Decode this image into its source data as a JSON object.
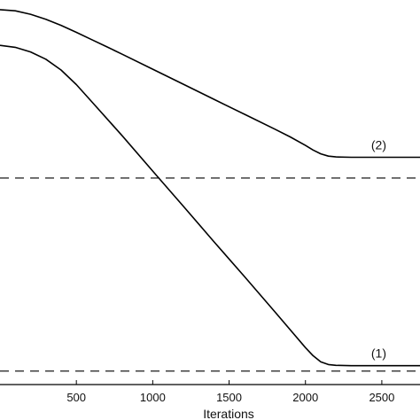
{
  "chart_data": {
    "type": "line",
    "xlabel": "Iterations",
    "ylabel": "",
    "xlim": [
      0,
      2750
    ],
    "ylim": [
      0,
      1
    ],
    "xticks": [
      500,
      1000,
      1500,
      2000,
      2500
    ],
    "grid": false,
    "series": [
      {
        "name": "(2)",
        "style": "solid",
        "color": "#000000",
        "x": [
          0,
          100,
          200,
          300,
          400,
          500,
          600,
          700,
          800,
          1000,
          1200,
          1400,
          1600,
          1800,
          1900,
          2000,
          2050,
          2100,
          2150,
          2200,
          2300,
          2500,
          2750
        ],
        "y": [
          0.975,
          0.972,
          0.963,
          0.95,
          0.934,
          0.916,
          0.897,
          0.878,
          0.859,
          0.82,
          0.781,
          0.742,
          0.703,
          0.664,
          0.644,
          0.622,
          0.61,
          0.6,
          0.594,
          0.592,
          0.591,
          0.591,
          0.591
        ]
      },
      {
        "name": "(1)",
        "style": "solid",
        "color": "#000000",
        "x": [
          0,
          100,
          200,
          300,
          400,
          500,
          600,
          800,
          1000,
          1200,
          1400,
          1600,
          1800,
          2000,
          2050,
          2100,
          2150,
          2200,
          2300,
          2500,
          2750
        ],
        "y": [
          0.882,
          0.877,
          0.865,
          0.846,
          0.818,
          0.78,
          0.736,
          0.647,
          0.555,
          0.464,
          0.372,
          0.281,
          0.189,
          0.096,
          0.075,
          0.059,
          0.052,
          0.05,
          0.049,
          0.049,
          0.049
        ]
      }
    ],
    "reference_lines": [
      {
        "y": 0.537,
        "style": "dashed"
      },
      {
        "y": 0.035,
        "style": "dashed"
      }
    ]
  }
}
